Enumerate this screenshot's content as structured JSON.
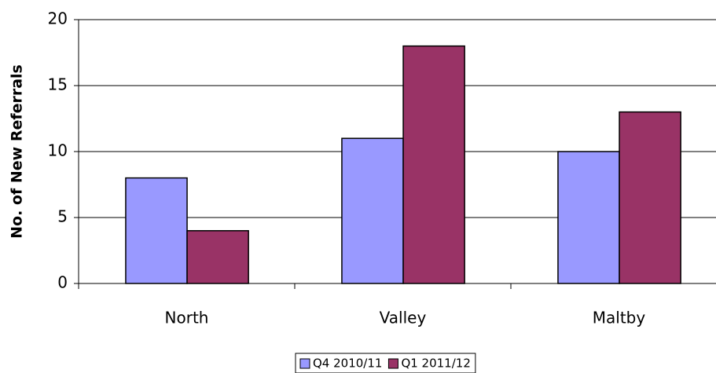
{
  "chart_data": {
    "type": "bar",
    "y_label": "No. of New Referrals",
    "categories": [
      "North",
      "Valley",
      "Maltby"
    ],
    "series": [
      {
        "name": "Q4 2010/11",
        "color": "#9999ff",
        "values": [
          8,
          11,
          10
        ]
      },
      {
        "name": "Q1 2011/12",
        "color": "#993366",
        "values": [
          4,
          18,
          13
        ]
      }
    ],
    "ylim": [
      0,
      20
    ],
    "yticks": [
      0,
      5,
      10,
      15,
      20
    ],
    "grid": true,
    "legend": "bottom"
  }
}
